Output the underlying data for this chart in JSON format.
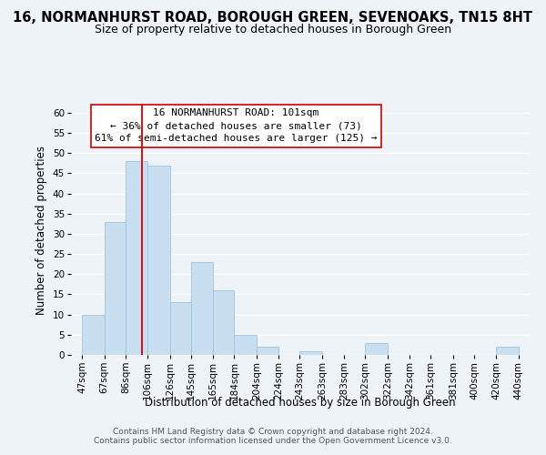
{
  "title": "16, NORMANHURST ROAD, BOROUGH GREEN, SEVENOAKS, TN15 8HT",
  "subtitle": "Size of property relative to detached houses in Borough Green",
  "xlabel": "Distribution of detached houses by size in Borough Green",
  "ylabel": "Number of detached properties",
  "bar_edges": [
    47,
    67,
    86,
    106,
    126,
    145,
    165,
    184,
    204,
    224,
    243,
    263,
    283,
    302,
    322,
    342,
    361,
    381,
    400,
    420,
    440
  ],
  "bar_heights": [
    10,
    33,
    48,
    47,
    13,
    23,
    16,
    5,
    2,
    0,
    1,
    0,
    0,
    3,
    0,
    0,
    0,
    0,
    0,
    2,
    0
  ],
  "bar_color": "#c9dff0",
  "bar_edge_color": "#a0c4df",
  "vline_x": 101,
  "vline_color": "#cc0000",
  "ylim": [
    0,
    62
  ],
  "yticks": [
    0,
    5,
    10,
    15,
    20,
    25,
    30,
    35,
    40,
    45,
    50,
    55,
    60
  ],
  "xtick_labels": [
    "47sqm",
    "67sqm",
    "86sqm",
    "106sqm",
    "126sqm",
    "145sqm",
    "165sqm",
    "184sqm",
    "204sqm",
    "224sqm",
    "243sqm",
    "263sqm",
    "283sqm",
    "302sqm",
    "322sqm",
    "342sqm",
    "361sqm",
    "381sqm",
    "400sqm",
    "420sqm",
    "440sqm"
  ],
  "annotation_line1": "16 NORMANHURST ROAD: 101sqm",
  "annotation_line2": "← 36% of detached houses are smaller (73)",
  "annotation_line3": "61% of semi-detached houses are larger (125) →",
  "footer_line1": "Contains HM Land Registry data © Crown copyright and database right 2024.",
  "footer_line2": "Contains public sector information licensed under the Open Government Licence v3.0.",
  "background_color": "#eef3f8",
  "grid_color": "#ffffff",
  "title_fontsize": 10.5,
  "subtitle_fontsize": 9,
  "axis_label_fontsize": 8.5,
  "tick_fontsize": 7.5,
  "annotation_fontsize": 8,
  "footer_fontsize": 6.5
}
